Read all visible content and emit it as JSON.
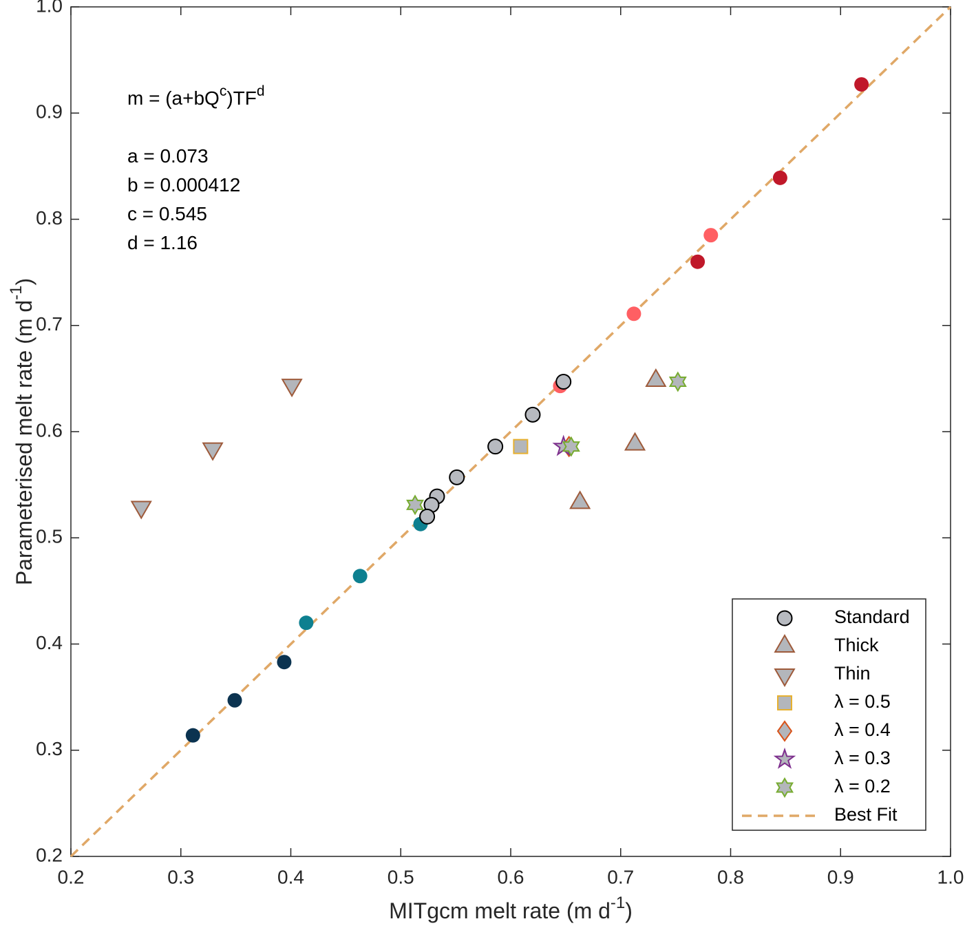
{
  "chart_data": {
    "type": "scatter",
    "xlabel": [
      {
        "text": "MITgcm melt rate (m d"
      },
      {
        "text": "-1",
        "sup": true
      },
      {
        "text": ")"
      }
    ],
    "ylabel": [
      {
        "text": "Parameterised melt rate (m d"
      },
      {
        "text": "-1",
        "sup": true
      },
      {
        "text": ")"
      }
    ],
    "annotations": [
      [
        {
          "text": "m = (a+bQ"
        },
        {
          "text": "c",
          "sup": true
        },
        {
          "text": ")TF"
        },
        {
          "text": "d",
          "sup": true
        }
      ],
      [
        {
          "text": "a = 0.073"
        }
      ],
      [
        {
          "text": "b = 0.000412"
        }
      ],
      [
        {
          "text": "c = 0.545"
        }
      ],
      [
        {
          "text": "d = 1.16"
        }
      ]
    ],
    "xlim": [
      0.2,
      1.0
    ],
    "ylim": [
      0.2,
      1.0
    ],
    "xticks": [
      0.2,
      0.3,
      0.4,
      0.5,
      0.6,
      0.7,
      0.8,
      0.9,
      {
        "value": 1.0,
        "label": "1.0"
      }
    ],
    "yticks": [
      0.2,
      0.3,
      0.4,
      0.5,
      0.6,
      0.7,
      0.8,
      0.9,
      {
        "value": 1.0,
        "label": "1.0"
      }
    ],
    "grid": false,
    "legend": "lower right",
    "series": [
      {
        "marker": "circle",
        "color": "#c0182a",
        "x": [
          0.919,
          0.845,
          0.77
        ],
        "values": [
          0.927,
          0.839,
          0.76
        ]
      },
      {
        "marker": "circle",
        "color": "#ff5f63",
        "x": [
          0.782,
          0.712,
          0.645
        ],
        "values": [
          0.785,
          0.711,
          0.643
        ]
      },
      {
        "marker": "circle",
        "color": "#0e8090",
        "x": [
          0.414,
          0.463,
          0.518
        ],
        "values": [
          0.42,
          0.464,
          0.513
        ]
      },
      {
        "marker": "circle",
        "color": "#0b3350",
        "x": [
          0.394,
          0.349,
          0.311
        ],
        "values": [
          0.383,
          0.347,
          0.314
        ]
      },
      {
        "name": "Standard",
        "marker": "circle",
        "color": "#b7bac0",
        "edge": "#000000",
        "x": [
          0.648,
          0.62,
          0.586,
          0.551,
          0.533,
          0.528,
          0.524
        ],
        "values": [
          0.647,
          0.616,
          0.586,
          0.557,
          0.539,
          0.531,
          0.52
        ]
      },
      {
        "name": "Thick",
        "marker": "triangle-up",
        "color": "#b3b6bb",
        "edge": "#9e5a3a",
        "x": [
          0.732,
          0.713,
          0.663
        ],
        "values": [
          0.648,
          0.588,
          0.533
        ]
      },
      {
        "name": "Thin",
        "marker": "triangle-down",
        "color": "#b3b6bb",
        "edge": "#9e5a3a",
        "x": [
          0.401,
          0.329,
          0.264
        ],
        "values": [
          0.644,
          0.584,
          0.529
        ]
      },
      {
        "name": "λ = 0.5",
        "marker": "square",
        "color": "#b3b6bb",
        "edge": "#e6b030",
        "x": [
          0.609
        ],
        "values": [
          0.586
        ]
      },
      {
        "name": "λ = 0.4",
        "marker": "diamond",
        "color": "#b3b6bb",
        "edge": "#d95319",
        "x": [
          0.653
        ],
        "values": [
          0.586
        ]
      },
      {
        "name": "λ = 0.3",
        "marker": "star",
        "color": "#b3b6bb",
        "edge": "#7e2f8e",
        "x": [
          0.648
        ],
        "values": [
          0.586
        ]
      },
      {
        "name": "λ = 0.2",
        "marker": "hexagram",
        "color": "#b3b6bb",
        "edge": "#77ac30",
        "x": [
          0.752,
          0.655,
          0.513
        ],
        "values": [
          0.647,
          0.586,
          0.531
        ]
      },
      {
        "name": "Best Fit",
        "marker": "dashed-line",
        "color": "#e0a867",
        "x": [
          0.2,
          1.0
        ],
        "values": [
          0.2,
          1.0
        ]
      }
    ]
  }
}
